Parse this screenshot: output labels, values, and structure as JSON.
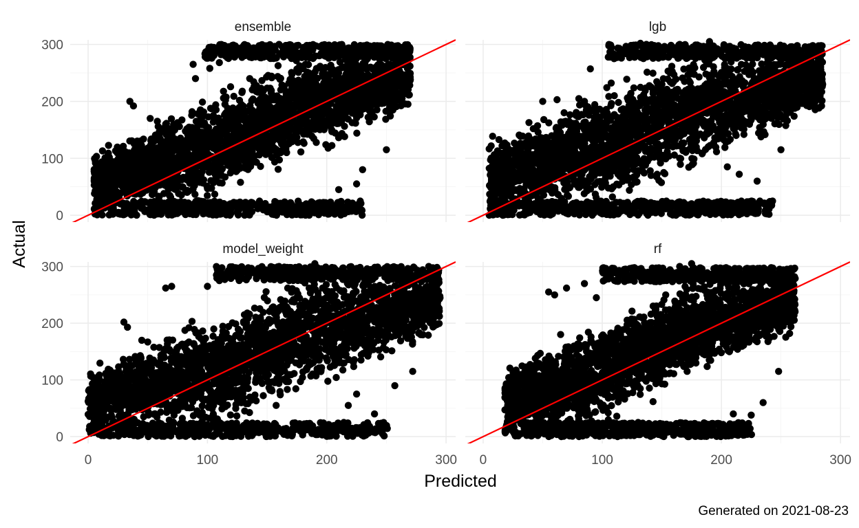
{
  "chart_data": {
    "type": "scatter",
    "facets": [
      "ensemble",
      "lgb",
      "model_weight",
      "rf"
    ],
    "xlabel": "Predicted",
    "ylabel": "Actual",
    "caption": "Generated on 2021-08-23",
    "xlim": [
      -15,
      308
    ],
    "ylim": [
      -12,
      308
    ],
    "x_ticks": [
      0,
      100,
      200,
      300
    ],
    "y_ticks": [
      0,
      100,
      200,
      300
    ],
    "grid": true,
    "reference_line": {
      "intercept": 0,
      "slope": 1,
      "color": "#ff0000"
    },
    "point_color": "#000000",
    "panels": [
      {
        "facet": "ensemble",
        "band": {
          "x_min": 5,
          "x_max": 270,
          "y_min": 0,
          "y_max": 300,
          "lower_offset": -90,
          "upper_offset": 120
        },
        "outliers": [
          [
            35,
            200
          ],
          [
            38,
            192
          ],
          [
            52,
            170
          ],
          [
            88,
            265
          ],
          [
            90,
            240
          ],
          [
            102,
            258
          ],
          [
            110,
            268
          ],
          [
            120,
            290
          ],
          [
            58,
            165
          ],
          [
            65,
            160
          ],
          [
            225,
            55
          ],
          [
            210,
            45
          ],
          [
            230,
            80
          ],
          [
            250,
            115
          ],
          [
            268,
            195
          ],
          [
            200,
            205
          ],
          [
            185,
            250
          ],
          [
            140,
            290
          ],
          [
            160,
            300
          ]
        ]
      },
      {
        "facet": "lgb",
        "band": {
          "x_min": 5,
          "x_max": 285,
          "y_min": 0,
          "y_max": 300,
          "lower_offset": -110,
          "upper_offset": 135
        },
        "outliers": [
          [
            50,
            200
          ],
          [
            62,
            203
          ],
          [
            72,
            165
          ],
          [
            68,
            180
          ],
          [
            90,
            257
          ],
          [
            110,
            275
          ],
          [
            132,
            302
          ],
          [
            148,
            290
          ],
          [
            205,
            85
          ],
          [
            215,
            72
          ],
          [
            230,
            60
          ],
          [
            250,
            115
          ],
          [
            280,
            262
          ],
          [
            275,
            195
          ],
          [
            190,
            305
          ],
          [
            165,
            300
          ],
          [
            85,
            200
          ]
        ]
      },
      {
        "facet": "model_weight",
        "band": {
          "x_min": 0,
          "x_max": 295,
          "y_min": 0,
          "y_max": 300,
          "lower_offset": -120,
          "upper_offset": 125
        },
        "outliers": [
          [
            30,
            202
          ],
          [
            33,
            193
          ],
          [
            45,
            170
          ],
          [
            65,
            262
          ],
          [
            70,
            265
          ],
          [
            100,
            265
          ],
          [
            110,
            275
          ],
          [
            120,
            290
          ],
          [
            240,
            40
          ],
          [
            218,
            55
          ],
          [
            225,
            75
          ],
          [
            257,
            90
          ],
          [
            272,
            115
          ],
          [
            290,
            195
          ],
          [
            190,
            305
          ],
          [
            160,
            300
          ]
        ]
      },
      {
        "facet": "rf",
        "band": {
          "x_min": 18,
          "x_max": 262,
          "y_min": 0,
          "y_max": 298,
          "lower_offset": -85,
          "upper_offset": 110
        },
        "outliers": [
          [
            55,
            255
          ],
          [
            60,
            250
          ],
          [
            65,
            180
          ],
          [
            70,
            262
          ],
          [
            85,
            270
          ],
          [
            95,
            245
          ],
          [
            115,
            290
          ],
          [
            130,
            295
          ],
          [
            210,
            40
          ],
          [
            225,
            38
          ],
          [
            235,
            60
          ],
          [
            252,
            195
          ],
          [
            248,
            115
          ],
          [
            175,
            305
          ],
          [
            165,
            300
          ]
        ]
      }
    ]
  }
}
